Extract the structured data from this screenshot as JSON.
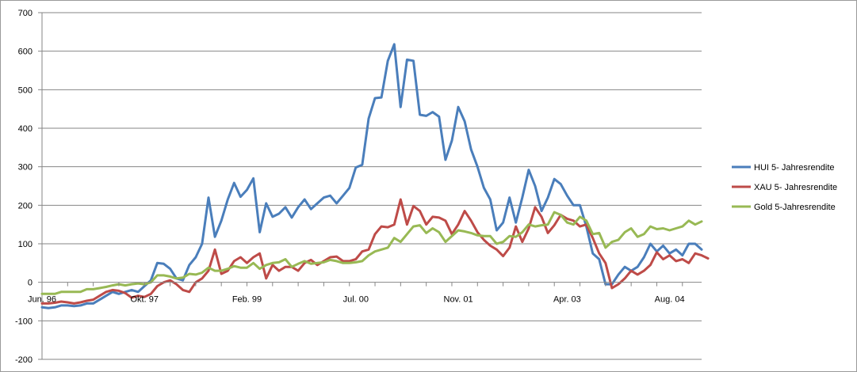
{
  "chart_data": {
    "type": "line",
    "title": "",
    "xlabel": "",
    "ylabel": "",
    "ylim": [
      -200,
      700
    ],
    "y_ticks": [
      "700",
      "600",
      "500",
      "400",
      "300",
      "200",
      "100",
      "0",
      "-100",
      "-200"
    ],
    "x_ticks": [
      {
        "label": "Jun. 96",
        "index": 0
      },
      {
        "label": "Okt. 97",
        "index": 16
      },
      {
        "label": "Feb. 99",
        "index": 32
      },
      {
        "label": "Jul. 00",
        "index": 49
      },
      {
        "label": "Nov. 01",
        "index": 65
      },
      {
        "label": "Apr. 03",
        "index": 82
      },
      {
        "label": "Aug. 04",
        "index": 98
      }
    ],
    "grid": true,
    "legend_position": "right",
    "series": [
      {
        "name": "HUI 5- Jahresrendite",
        "color": "#4a7ebb",
        "values": [
          -65,
          -67,
          -65,
          -60,
          -60,
          -62,
          -60,
          -55,
          -55,
          -45,
          -35,
          -25,
          -30,
          -25,
          -20,
          -25,
          -10,
          5,
          50,
          48,
          35,
          10,
          5,
          45,
          65,
          100,
          220,
          118,
          160,
          215,
          258,
          222,
          240,
          270,
          130,
          205,
          170,
          178,
          195,
          168,
          195,
          215,
          190,
          205,
          220,
          225,
          205,
          225,
          245,
          298,
          305,
          425,
          478,
          480,
          575,
          618,
          455,
          578,
          575,
          435,
          432,
          442,
          430,
          318,
          368,
          455,
          418,
          345,
          300,
          245,
          215,
          135,
          155,
          220,
          155,
          220,
          292,
          250,
          185,
          220,
          268,
          255,
          225,
          200,
          200,
          145,
          75,
          60,
          -5,
          -5,
          20,
          40,
          30,
          40,
          65,
          100,
          80,
          95,
          75,
          85,
          70,
          100,
          100,
          85
        ]
      },
      {
        "name": "XAU 5- Jahresrendite",
        "color": "#be4b48",
        "values": [
          -55,
          -55,
          -53,
          -50,
          -52,
          -55,
          -52,
          -48,
          -45,
          -35,
          -25,
          -20,
          -22,
          -28,
          -40,
          -35,
          -38,
          -30,
          -10,
          0,
          5,
          -5,
          -20,
          -25,
          0,
          10,
          30,
          85,
          22,
          30,
          55,
          65,
          50,
          65,
          75,
          10,
          45,
          30,
          40,
          40,
          30,
          50,
          58,
          45,
          55,
          65,
          67,
          55,
          55,
          60,
          80,
          85,
          125,
          145,
          143,
          150,
          215,
          150,
          198,
          185,
          150,
          170,
          168,
          160,
          125,
          150,
          185,
          160,
          130,
          110,
          95,
          85,
          68,
          90,
          145,
          105,
          140,
          195,
          170,
          128,
          148,
          175,
          165,
          160,
          145,
          150,
          115,
          75,
          50,
          -15,
          -5,
          10,
          30,
          20,
          30,
          45,
          78,
          60,
          70,
          55,
          60,
          50,
          75,
          70,
          62
        ]
      },
      {
        "name": "Gold 5-Jahresrendite",
        "color": "#98b954",
        "values": [
          -30,
          -30,
          -30,
          -25,
          -25,
          -25,
          -25,
          -18,
          -18,
          -15,
          -12,
          -8,
          -5,
          -8,
          -5,
          -3,
          -5,
          0,
          18,
          18,
          15,
          10,
          12,
          22,
          20,
          25,
          38,
          30,
          30,
          35,
          42,
          38,
          38,
          50,
          35,
          45,
          50,
          52,
          60,
          40,
          48,
          55,
          48,
          50,
          52,
          58,
          55,
          50,
          50,
          52,
          55,
          70,
          80,
          85,
          90,
          115,
          105,
          125,
          145,
          148,
          128,
          140,
          130,
          105,
          120,
          135,
          132,
          128,
          122,
          120,
          120,
          100,
          105,
          120,
          118,
          130,
          150,
          145,
          148,
          150,
          182,
          175,
          155,
          150,
          170,
          160,
          125,
          128,
          90,
          105,
          110,
          130,
          140,
          118,
          125,
          145,
          138,
          140,
          135,
          140,
          145,
          160,
          150,
          158
        ]
      }
    ]
  }
}
